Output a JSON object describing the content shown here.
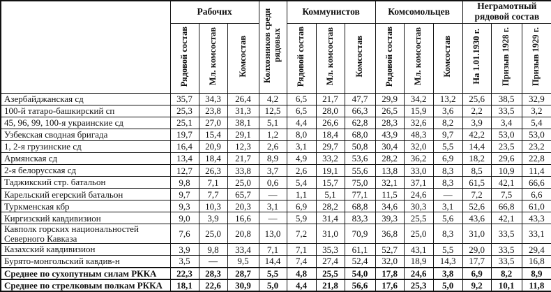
{
  "table": {
    "header": {
      "unit_column_label": "",
      "groups": [
        {
          "label": "Рабочих",
          "subs": [
            "Рядовой состав",
            "Мл. комсостав",
            "Комсостав"
          ]
        },
        {
          "label": "Колхозников среди рядовых",
          "subs": []
        },
        {
          "label": "Коммунистов",
          "subs": [
            "Рядовой состав",
            "Мл. комсостав",
            "Комсостав"
          ]
        },
        {
          "label": "Комсомольцев",
          "subs": [
            "Рядовой состав",
            "Мл. комсостав",
            "Комсостав"
          ]
        },
        {
          "label": "Неграмотный рядовой состав",
          "subs": [
            "На 1.01.1930 г.",
            "Призыв 1928 г.",
            "Призыв 1929 г."
          ]
        }
      ]
    },
    "rows": [
      {
        "name": "Азербайджанская сд",
        "values": [
          "35,7",
          "34,3",
          "26,4",
          "4,2",
          "6,5",
          "21,7",
          "47,7",
          "29,9",
          "34,2",
          "13,2",
          "25,6",
          "38,5",
          "32,9"
        ],
        "bold": false
      },
      {
        "name": "100-й татаро-башкирский сп",
        "values": [
          "25,3",
          "23,8",
          "31,3",
          "12,5",
          "6,5",
          "28,0",
          "66,3",
          "26,5",
          "15,9",
          "3,6",
          "2,2",
          "33,5",
          "3,2"
        ],
        "bold": false
      },
      {
        "name": "45, 96, 99, 100-я украинские сд",
        "values": [
          "25,1",
          "27,0",
          "38,1",
          "5,1",
          "4,4",
          "26,6",
          "62,8",
          "28,3",
          "32,6",
          "8,2",
          "3,9",
          "3,4",
          "5,4"
        ],
        "bold": false
      },
      {
        "name": "Узбекская сводная бригада",
        "values": [
          "19,7",
          "15,4",
          "29,1",
          "1,2",
          "8,0",
          "18,4",
          "68,0",
          "43,9",
          "48,3",
          "9,7",
          "42,2",
          "53,0",
          "53,0"
        ],
        "bold": false
      },
      {
        "name": "1, 2-я грузинские сд",
        "values": [
          "16,4",
          "20,9",
          "12,3",
          "2,6",
          "3,1",
          "29,7",
          "50,8",
          "30,4",
          "32,0",
          "5,5",
          "14,4",
          "23,5",
          "23,2"
        ],
        "bold": false
      },
      {
        "name": "Армянская сд",
        "values": [
          "13,4",
          "18,4",
          "21,7",
          "8,9",
          "4,9",
          "33,2",
          "53,6",
          "28,2",
          "36,2",
          "6,9",
          "18,2",
          "29,6",
          "22,8"
        ],
        "bold": false
      },
      {
        "name": "2-я белорусская сд",
        "values": [
          "12,7",
          "26,3",
          "33,8",
          "3,7",
          "2,6",
          "19,1",
          "55,6",
          "13,8",
          "33,0",
          "8,3",
          "8,5",
          "10,9",
          "11,4"
        ],
        "bold": false
      },
      {
        "name": "Таджикский стр. батальон",
        "values": [
          "9,8",
          "7,1",
          "25,0",
          "0,6",
          "5,4",
          "15,7",
          "75,0",
          "32,1",
          "37,1",
          "8,3",
          "61,5",
          "42,1",
          "66,6"
        ],
        "bold": false
      },
      {
        "name": "Карельский егерский батальон",
        "values": [
          "9,7",
          "7,7",
          "65,7",
          "—",
          "1,1",
          "5,1",
          "77,1",
          "11,5",
          "24,6",
          "—",
          "7,2",
          "7,5",
          "6,6"
        ],
        "bold": false
      },
      {
        "name": "Туркменская кбр",
        "values": [
          "9,3",
          "10,3",
          "20,3",
          "3,1",
          "6,9",
          "28,2",
          "68,8",
          "34,6",
          "30,3",
          "3,1",
          "52,6",
          "66,8",
          "61,0"
        ],
        "bold": false
      },
      {
        "name": "Киргизский кавдивизион",
        "values": [
          "9,0",
          "3,9",
          "16,6",
          "—",
          "5,9",
          "31,4",
          "83,3",
          "39,3",
          "25,5",
          "5,6",
          "43,6",
          "42,1",
          "43,3"
        ],
        "bold": false
      },
      {
        "name": "Кавполк горских национальностей Северного Кавказа",
        "values": [
          "7,6",
          "25,0",
          "20,8",
          "13,0",
          "7,2",
          "31,0",
          "70,9",
          "36,8",
          "25,0",
          "8,3",
          "31,0",
          "33,5",
          "33,1"
        ],
        "bold": false
      },
      {
        "name": "Казахский кавдивизион",
        "values": [
          "3,9",
          "9,8",
          "33,4",
          "7,1",
          "7,1",
          "35,3",
          "61,1",
          "52,7",
          "43,1",
          "5,5",
          "29,0",
          "33,5",
          "29,4"
        ],
        "bold": false
      },
      {
        "name": "Бурято-монгольский кавдив-н",
        "values": [
          "3,5",
          "—",
          "9,5",
          "14,4",
          "7,4",
          "27,4",
          "52,4",
          "32,0",
          "18,9",
          "14,3",
          "17,7",
          "33,5",
          "16,8"
        ],
        "bold": false
      },
      {
        "name": "Среднее по сухопутным силам РККА",
        "values": [
          "22,3",
          "28,3",
          "28,7",
          "5,5",
          "4,8",
          "25,5",
          "54,0",
          "17,8",
          "24,6",
          "3,8",
          "6,9",
          "8,2",
          "8,9"
        ],
        "bold": true
      },
      {
        "name": "Среднее по стрелковым полкам РККА",
        "values": [
          "18,1",
          "22,6",
          "30,9",
          "5,0",
          "4,4",
          "21,8",
          "56,6",
          "17,6",
          "25,3",
          "5,0",
          "9,2",
          "10,1",
          "11,8"
        ],
        "bold": true
      }
    ]
  }
}
